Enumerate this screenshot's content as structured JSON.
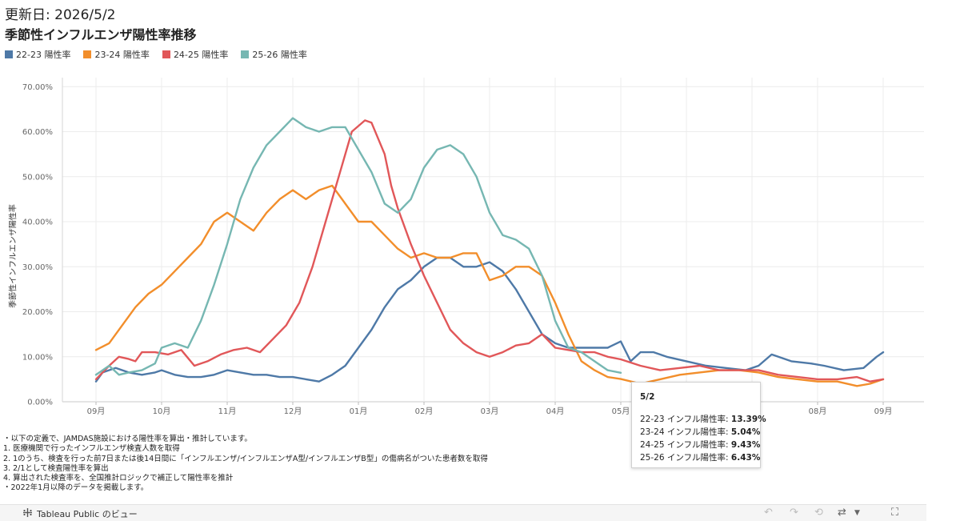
{
  "header": {
    "updated": "更新日: 2026/5/2",
    "title": "季節性インフルエンザ陽性率推移"
  },
  "chart_data": {
    "type": "line",
    "ylabel": "季節性インフルエンザ陽性率",
    "ylim": [
      0,
      0.72
    ],
    "y_ticks": [
      "0.00%",
      "10.00%",
      "20.00%",
      "30.00%",
      "40.00%",
      "50.00%",
      "60.00%",
      "70.00%"
    ],
    "x_ticks": [
      "09月",
      "10月",
      "11月",
      "12月",
      "01月",
      "02月",
      "03月",
      "04月",
      "05月",
      "06月",
      "07月",
      "08月",
      "09月"
    ],
    "grid": true,
    "legend_position": "top-left",
    "x_unit": "months since September 1 (0 = 09月, 12 = next 09月)",
    "series": [
      {
        "name": "22-23 陽性率",
        "color": "#4e79a7",
        "points": [
          [
            0,
            4.5
          ],
          [
            0.1,
            6.5
          ],
          [
            0.3,
            7.5
          ],
          [
            0.5,
            6.5
          ],
          [
            0.7,
            6
          ],
          [
            0.9,
            6.5
          ],
          [
            1,
            7
          ],
          [
            1.2,
            6
          ],
          [
            1.4,
            5.5
          ],
          [
            1.6,
            5.5
          ],
          [
            1.8,
            6
          ],
          [
            2,
            7
          ],
          [
            2.2,
            6.5
          ],
          [
            2.4,
            6
          ],
          [
            2.6,
            6
          ],
          [
            2.8,
            5.5
          ],
          [
            3,
            5.5
          ],
          [
            3.2,
            5
          ],
          [
            3.4,
            4.5
          ],
          [
            3.6,
            6
          ],
          [
            3.8,
            8
          ],
          [
            4,
            12
          ],
          [
            4.2,
            16
          ],
          [
            4.4,
            21
          ],
          [
            4.6,
            25
          ],
          [
            4.8,
            27
          ],
          [
            5,
            30
          ],
          [
            5.2,
            32
          ],
          [
            5.4,
            32
          ],
          [
            5.6,
            30
          ],
          [
            5.8,
            30
          ],
          [
            6,
            31
          ],
          [
            6.2,
            29
          ],
          [
            6.4,
            25
          ],
          [
            6.6,
            20
          ],
          [
            6.8,
            15
          ],
          [
            7,
            13
          ],
          [
            7.2,
            12
          ],
          [
            7.4,
            12
          ],
          [
            7.6,
            12
          ],
          [
            7.8,
            12
          ],
          [
            8,
            13.4
          ],
          [
            8.15,
            9
          ],
          [
            8.3,
            11
          ],
          [
            8.5,
            11
          ],
          [
            8.7,
            10
          ],
          [
            9,
            9
          ],
          [
            9.3,
            8
          ],
          [
            9.6,
            7.5
          ],
          [
            9.9,
            7
          ],
          [
            10.1,
            8
          ],
          [
            10.3,
            10.5
          ],
          [
            10.6,
            9
          ],
          [
            10.9,
            8.5
          ],
          [
            11.1,
            8
          ],
          [
            11.4,
            7
          ],
          [
            11.7,
            7.5
          ],
          [
            11.9,
            10
          ],
          [
            12,
            11
          ]
        ]
      },
      {
        "name": "23-24 陽性率",
        "color": "#f28e2b",
        "points": [
          [
            0,
            11.5
          ],
          [
            0.2,
            13
          ],
          [
            0.4,
            17
          ],
          [
            0.6,
            21
          ],
          [
            0.8,
            24
          ],
          [
            1,
            26
          ],
          [
            1.2,
            29
          ],
          [
            1.4,
            32
          ],
          [
            1.6,
            35
          ],
          [
            1.8,
            40
          ],
          [
            2,
            42
          ],
          [
            2.2,
            40
          ],
          [
            2.4,
            38
          ],
          [
            2.6,
            42
          ],
          [
            2.8,
            45
          ],
          [
            3,
            47
          ],
          [
            3.2,
            45
          ],
          [
            3.4,
            47
          ],
          [
            3.6,
            48
          ],
          [
            3.8,
            44
          ],
          [
            4,
            40
          ],
          [
            4.2,
            40
          ],
          [
            4.4,
            37
          ],
          [
            4.6,
            34
          ],
          [
            4.8,
            32
          ],
          [
            5,
            33
          ],
          [
            5.2,
            32
          ],
          [
            5.4,
            32
          ],
          [
            5.6,
            33
          ],
          [
            5.8,
            33
          ],
          [
            6,
            27
          ],
          [
            6.2,
            28
          ],
          [
            6.4,
            30
          ],
          [
            6.6,
            30
          ],
          [
            6.8,
            28
          ],
          [
            7,
            22
          ],
          [
            7.2,
            15
          ],
          [
            7.4,
            9
          ],
          [
            7.6,
            7
          ],
          [
            7.8,
            5.5
          ],
          [
            8,
            5.04
          ],
          [
            8.3,
            4
          ],
          [
            8.6,
            5
          ],
          [
            8.9,
            6
          ],
          [
            9.2,
            6.5
          ],
          [
            9.5,
            7
          ],
          [
            9.8,
            7
          ],
          [
            10.1,
            6.5
          ],
          [
            10.4,
            5.5
          ],
          [
            10.7,
            5
          ],
          [
            11,
            4.5
          ],
          [
            11.3,
            4.5
          ],
          [
            11.6,
            3.5
          ],
          [
            11.8,
            4
          ],
          [
            12,
            5
          ]
        ]
      },
      {
        "name": "24-25 陽性率",
        "color": "#e15759",
        "points": [
          [
            0,
            5
          ],
          [
            0.2,
            8
          ],
          [
            0.35,
            10
          ],
          [
            0.5,
            9.5
          ],
          [
            0.6,
            9
          ],
          [
            0.7,
            11
          ],
          [
            0.9,
            11
          ],
          [
            1.1,
            10.5
          ],
          [
            1.3,
            11.5
          ],
          [
            1.5,
            8
          ],
          [
            1.7,
            9
          ],
          [
            1.9,
            10.5
          ],
          [
            2.1,
            11.5
          ],
          [
            2.3,
            12
          ],
          [
            2.5,
            11
          ],
          [
            2.7,
            14
          ],
          [
            2.9,
            17
          ],
          [
            3.1,
            22
          ],
          [
            3.3,
            30
          ],
          [
            3.5,
            40
          ],
          [
            3.7,
            50
          ],
          [
            3.9,
            60
          ],
          [
            4.1,
            62.5
          ],
          [
            4.2,
            62
          ],
          [
            4.4,
            55
          ],
          [
            4.5,
            48
          ],
          [
            4.6,
            43
          ],
          [
            4.8,
            35
          ],
          [
            5,
            28
          ],
          [
            5.2,
            22
          ],
          [
            5.4,
            16
          ],
          [
            5.6,
            13
          ],
          [
            5.8,
            11
          ],
          [
            6,
            10
          ],
          [
            6.2,
            11
          ],
          [
            6.4,
            12.5
          ],
          [
            6.6,
            13
          ],
          [
            6.8,
            15
          ],
          [
            7,
            12
          ],
          [
            7.2,
            11.5
          ],
          [
            7.4,
            11
          ],
          [
            7.6,
            11
          ],
          [
            7.8,
            10
          ],
          [
            8,
            9.43
          ],
          [
            8.3,
            8
          ],
          [
            8.6,
            7
          ],
          [
            8.9,
            7.5
          ],
          [
            9.2,
            8
          ],
          [
            9.5,
            7
          ],
          [
            9.8,
            7
          ],
          [
            10.1,
            7
          ],
          [
            10.4,
            6
          ],
          [
            10.7,
            5.5
          ],
          [
            11,
            5
          ],
          [
            11.3,
            5
          ],
          [
            11.6,
            5.5
          ],
          [
            11.8,
            4.5
          ],
          [
            12,
            5
          ]
        ]
      },
      {
        "name": "25-26 陽性率",
        "color": "#76b7b2",
        "points": [
          [
            0,
            6
          ],
          [
            0.2,
            8
          ],
          [
            0.35,
            6
          ],
          [
            0.5,
            6.5
          ],
          [
            0.7,
            7
          ],
          [
            0.9,
            8.5
          ],
          [
            1,
            12
          ],
          [
            1.2,
            13
          ],
          [
            1.4,
            12
          ],
          [
            1.6,
            18
          ],
          [
            1.8,
            26
          ],
          [
            2,
            35
          ],
          [
            2.2,
            45
          ],
          [
            2.4,
            52
          ],
          [
            2.6,
            57
          ],
          [
            2.8,
            60
          ],
          [
            3,
            63
          ],
          [
            3.2,
            61
          ],
          [
            3.4,
            60
          ],
          [
            3.6,
            61
          ],
          [
            3.8,
            61
          ],
          [
            4,
            56
          ],
          [
            4.2,
            51
          ],
          [
            4.4,
            44
          ],
          [
            4.6,
            42
          ],
          [
            4.8,
            45
          ],
          [
            5,
            52
          ],
          [
            5.2,
            56
          ],
          [
            5.4,
            57
          ],
          [
            5.6,
            55
          ],
          [
            5.8,
            50
          ],
          [
            6,
            42
          ],
          [
            6.2,
            37
          ],
          [
            6.4,
            36
          ],
          [
            6.6,
            34
          ],
          [
            6.8,
            28
          ],
          [
            7,
            18
          ],
          [
            7.2,
            12
          ],
          [
            7.4,
            11
          ],
          [
            7.6,
            9
          ],
          [
            7.8,
            7
          ],
          [
            8,
            6.43
          ]
        ]
      }
    ]
  },
  "tooltip": {
    "date": "5/2",
    "rows": [
      {
        "label": "22-23 インフル陽性率:",
        "value": "13.39%"
      },
      {
        "label": "23-24 インフル陽性率:",
        "value": "5.04%"
      },
      {
        "label": "24-25 インフル陽性率:",
        "value": "9.43%"
      },
      {
        "label": "25-26 インフル陽性率:",
        "value": "6.43%"
      }
    ]
  },
  "notes": [
    "・以下の定義で、JAMDAS施設における陽性率を算出・推計しています。",
    "1. 医療機関で行ったインフルエンザ検査人数を取得",
    "2. 1のうち、検査を行った前7日または後14日間に「インフルエンザ/インフルエンザA型/インフルエンザB型」の傷病名がついた患者数を取得",
    "3. 2/1として検査陽性率を算出",
    "4. 算出された検査率を、全国推計ロジックで補正して陽性率を推計",
    "・2022年1月以降のデータを掲載します。"
  ],
  "footer": {
    "brand": "Tableau Public のビュー",
    "icons": [
      "tableau-logo-icon",
      "undo-icon",
      "redo-icon",
      "revert-icon",
      "share-icon",
      "dropdown-icon",
      "fullscreen-icon"
    ]
  }
}
